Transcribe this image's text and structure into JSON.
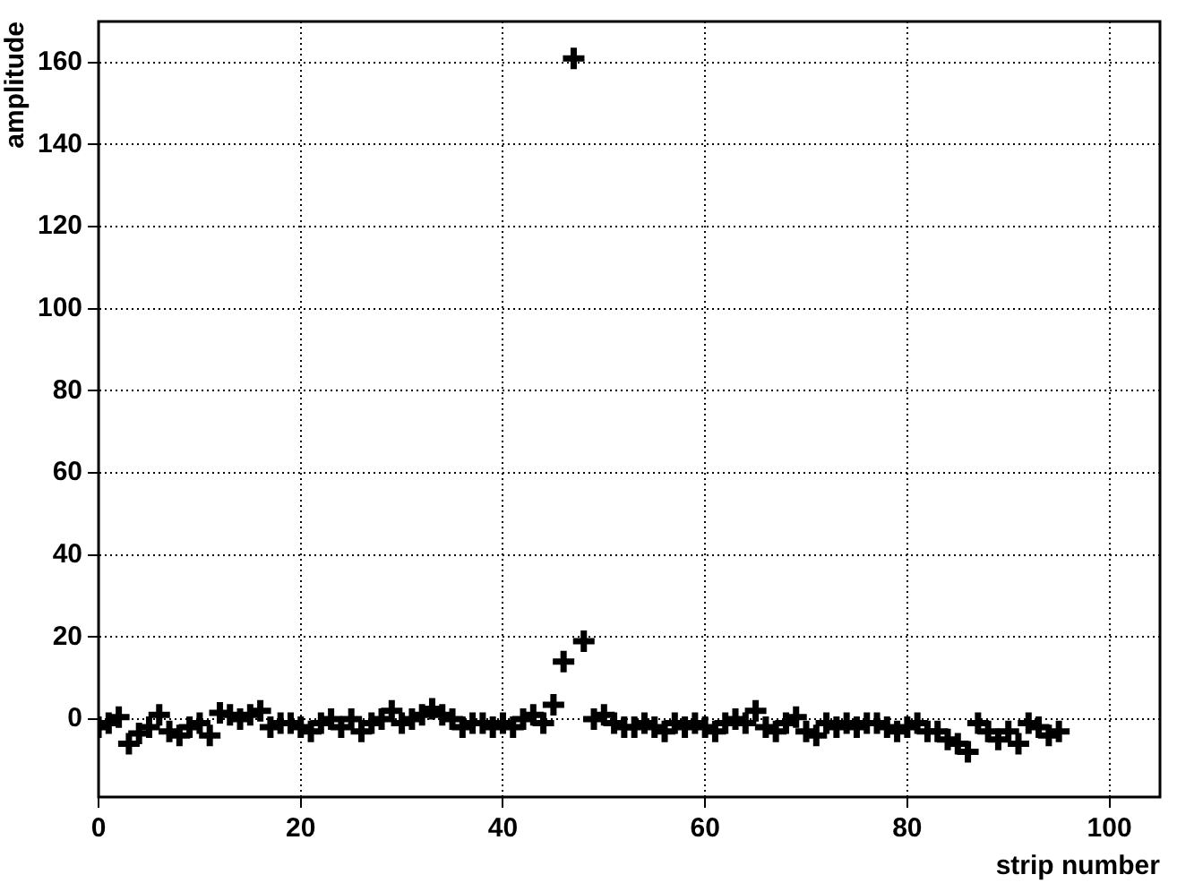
{
  "chart_data": {
    "type": "scatter",
    "xlabel": "strip number",
    "ylabel": "amplitude",
    "x": [
      0,
      1,
      2,
      3,
      4,
      5,
      6,
      7,
      8,
      9,
      10,
      11,
      12,
      13,
      14,
      15,
      16,
      17,
      18,
      19,
      20,
      21,
      22,
      23,
      24,
      25,
      26,
      27,
      28,
      29,
      30,
      31,
      32,
      33,
      34,
      35,
      36,
      37,
      38,
      39,
      40,
      41,
      42,
      43,
      44,
      45,
      46,
      47,
      48,
      49,
      50,
      51,
      52,
      53,
      54,
      55,
      56,
      57,
      58,
      59,
      60,
      61,
      62,
      63,
      64,
      65,
      66,
      67,
      68,
      69,
      70,
      71,
      72,
      73,
      74,
      75,
      76,
      77,
      78,
      79,
      80,
      81,
      82,
      83,
      84,
      85,
      86,
      87,
      88,
      89,
      90,
      91,
      92,
      93,
      94,
      95
    ],
    "values": [
      -2,
      -1,
      0.5,
      -6,
      -3.5,
      -2,
      1,
      -3,
      -4,
      -2,
      -1,
      -4,
      1.5,
      1,
      0,
      1,
      2,
      -2,
      -1,
      -1,
      -2,
      -3,
      -1,
      0,
      -2,
      0,
      -3,
      -1,
      0,
      2,
      -1,
      0,
      1,
      2.5,
      1,
      0,
      -2,
      -1,
      -1,
      -2,
      -1,
      -2,
      0,
      1,
      -1,
      3.5,
      14,
      161,
      19,
      0,
      1,
      -1,
      -2,
      -2,
      -1,
      -2,
      -3,
      -1,
      -2,
      -1,
      -2,
      -3,
      -1,
      0,
      -1,
      2,
      -2,
      -3,
      -1,
      0.5,
      -3,
      -4,
      -1,
      -2,
      -1,
      -2,
      -1,
      -1,
      -2,
      -3,
      -2,
      -1,
      -3,
      -3,
      -5,
      -6,
      -8,
      -1,
      -3,
      -5,
      -3,
      -6,
      -1,
      -2,
      -4,
      -3
    ],
    "color": "#000000",
    "marker": "cross",
    "grid": true,
    "legend": false,
    "xlim": [
      0,
      105
    ],
    "xticks": [
      0,
      20,
      40,
      60,
      80,
      100
    ],
    "ylim": [
      -19,
      170
    ],
    "yticks": [
      0,
      20,
      40,
      60,
      80,
      100,
      120,
      140,
      160
    ]
  }
}
